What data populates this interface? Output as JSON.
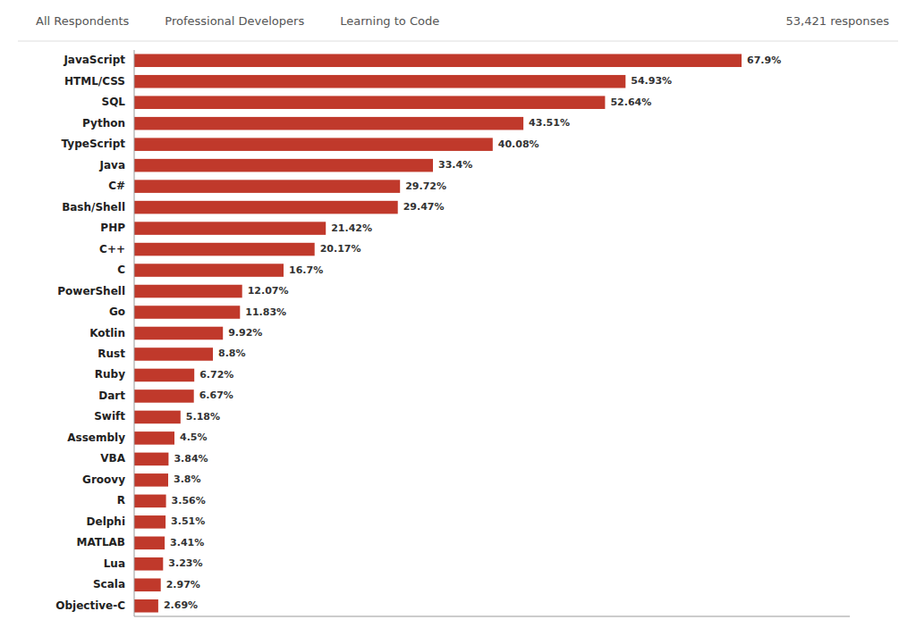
{
  "chart_data": {
    "type": "bar",
    "orientation": "horizontal",
    "annotations": [
      "All Respondents",
      "Professional Developers",
      "Learning to Code",
      "53,421 responses"
    ],
    "categories": [
      "JavaScript",
      "HTML/CSS",
      "SQL",
      "Python",
      "TypeScript",
      "Java",
      "C#",
      "Bash/Shell",
      "PHP",
      "C++",
      "C",
      "PowerShell",
      "Go",
      "Kotlin",
      "Rust",
      "Ruby",
      "Dart",
      "Swift",
      "Assembly",
      "VBA",
      "Groovy",
      "R",
      "Delphi",
      "MATLAB",
      "Lua",
      "Scala",
      "Objective-C"
    ],
    "values": [
      67.9,
      54.93,
      52.64,
      43.51,
      40.08,
      33.4,
      29.72,
      29.47,
      21.42,
      20.17,
      16.7,
      12.07,
      11.83,
      9.92,
      8.8,
      6.72,
      6.67,
      5.18,
      4.5,
      3.84,
      3.8,
      3.56,
      3.51,
      3.41,
      3.23,
      2.97,
      2.69
    ],
    "value_labels": [
      "67.9%",
      "54.93%",
      "52.64%",
      "43.51%",
      "40.08%",
      "33.4%",
      "29.72%",
      "29.47%",
      "21.42%",
      "20.17%",
      "16.7%",
      "12.07%",
      "11.83%",
      "9.92%",
      "8.8%",
      "6.72%",
      "6.67%",
      "5.18%",
      "4.5%",
      "3.84%",
      "3.8%",
      "3.56%",
      "3.51%",
      "3.41%",
      "3.23%",
      "2.97%",
      "2.69%"
    ],
    "color": "#c0392b",
    "xlim": [
      0,
      80
    ],
    "data_labels": true,
    "tick_labels": "y",
    "grid": false
  }
}
